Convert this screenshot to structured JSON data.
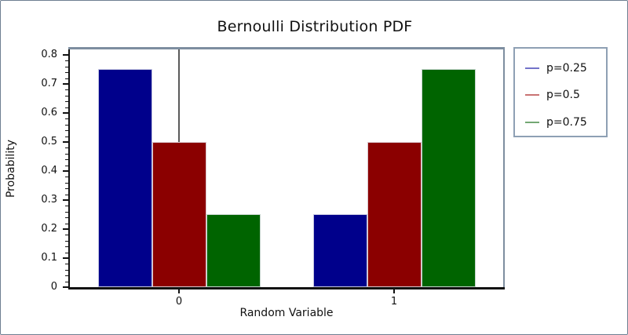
{
  "window": {
    "background": "#ffffff",
    "border_color": "#6e7f91"
  },
  "chart_data": {
    "type": "bar",
    "title": "Bernoulli Distribution PDF",
    "xlabel": "Random Variable",
    "ylabel": "Probability",
    "categories": [
      "0",
      "1"
    ],
    "series": [
      {
        "name": "p=0.25",
        "bar_color": "#00008b",
        "legend_line_color": "#7373c9",
        "values": [
          0.75,
          0.25
        ]
      },
      {
        "name": "p=0.5",
        "bar_color": "#8b0000",
        "legend_line_color": "#c97373",
        "values": [
          0.5,
          0.5
        ]
      },
      {
        "name": "p=0.75",
        "bar_color": "#006400",
        "legend_line_color": "#73a873",
        "values": [
          0.25,
          0.75
        ]
      }
    ],
    "ylim": [
      0,
      0.82
    ],
    "yticks": [
      0,
      0.1,
      0.2,
      0.3,
      0.4,
      0.5,
      0.6,
      0.7,
      0.8
    ],
    "ytick_labels": [
      "0",
      "0.1",
      "0.2",
      "0.3",
      "0.4",
      "0.5",
      "0.6",
      "0.7",
      "0.8"
    ],
    "minor_tick_step": 0.02,
    "grid": false,
    "legend_position": "right",
    "origin_vline_x": 0,
    "vline_color": "#5a5a5a",
    "axis_colors": {
      "left": "#111111",
      "bottom": "#111111",
      "top": "#7e8ea0",
      "right": "#7e8ea0"
    }
  }
}
